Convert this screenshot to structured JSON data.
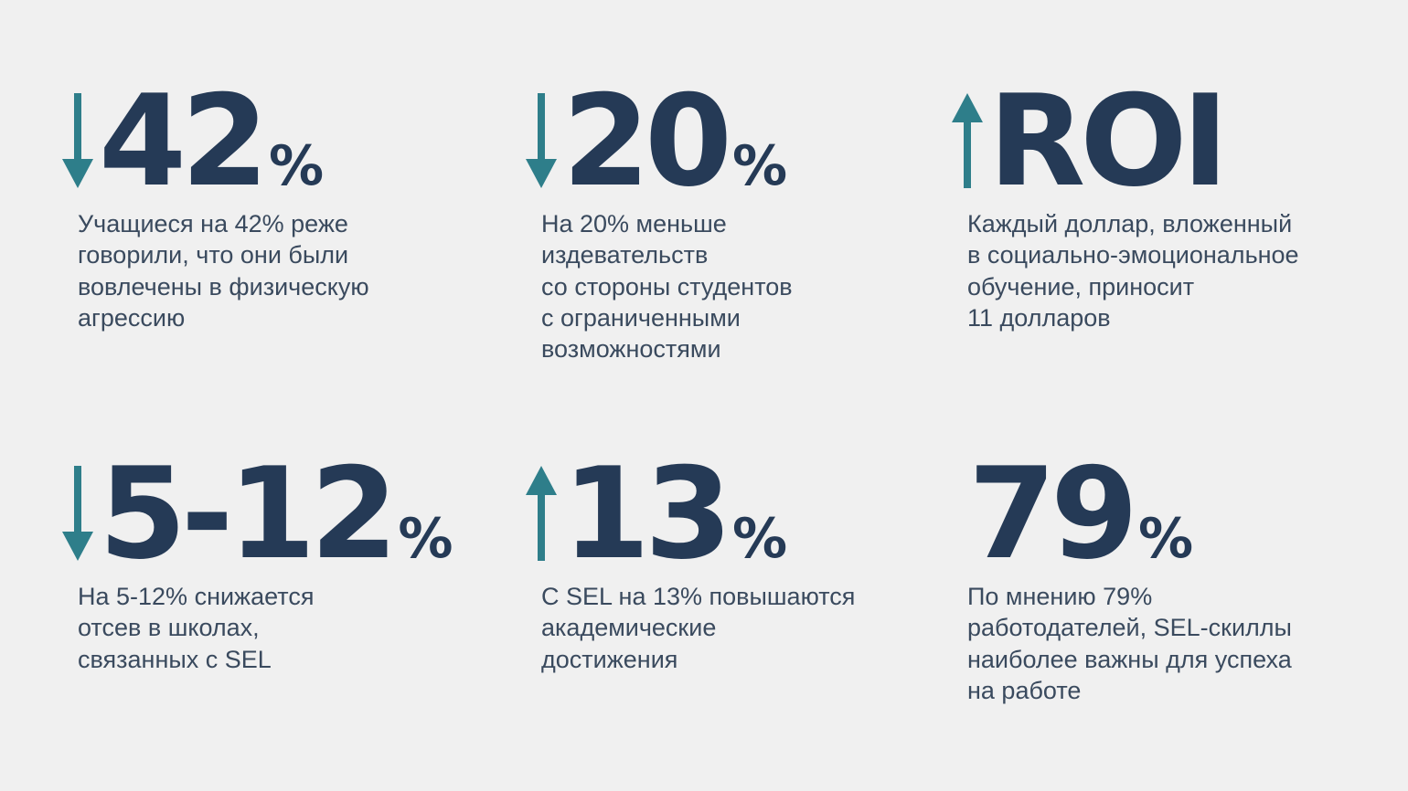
{
  "colors": {
    "background": "#f0f0f0",
    "headline": "#253a56",
    "arrow": "#2e7e8a",
    "text": "#3a4a5e"
  },
  "stats": [
    {
      "value": "42",
      "suffix": "%",
      "arrow": "down-arrow-icon",
      "description": "Учащиеся на 42% реже\nговорили, что они были\nвовлечены в физическую\nагрессию"
    },
    {
      "value": "20",
      "suffix": "%",
      "arrow": "down-arrow-icon",
      "description": "На 20% меньше\nиздевательств\nсо стороны студентов\nс ограниченными\nвозможностями"
    },
    {
      "value": "ROI",
      "suffix": "",
      "arrow": "up-arrow-icon",
      "description": "Каждый доллар, вложенный\nв социально-эмоциональное\nобучение, приносит\n11 долларов"
    },
    {
      "value": "5-12",
      "suffix": "%",
      "arrow": "down-arrow-icon",
      "description": "На 5-12% снижается\nотсев в школах,\nсвязанных с SEL"
    },
    {
      "value": "13",
      "suffix": "%",
      "arrow": "up-arrow-icon",
      "description": "С SEL на 13% повышаются\nакадемические\nдостижения"
    },
    {
      "value": "79",
      "suffix": "%",
      "arrow": "",
      "description": "По мнению 79%\nработодателей, SEL-скиллы\nнаиболее важны для успеха\nна работе"
    }
  ]
}
